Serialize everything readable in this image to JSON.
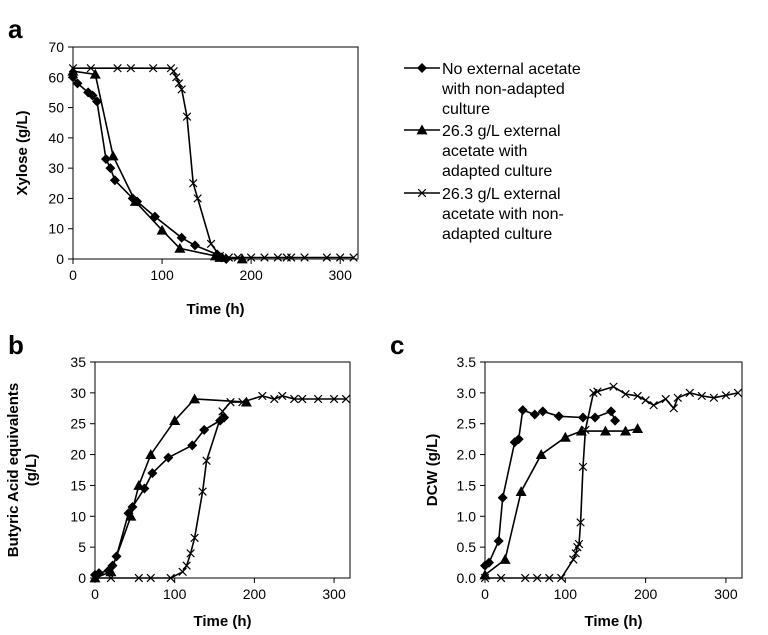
{
  "chart_data": [
    {
      "panel": "a",
      "type": "line",
      "xlabel": "Time (h)",
      "ylabel": "Xylose (g/L)",
      "xlim": [
        0,
        320
      ],
      "ylim": [
        0,
        70
      ],
      "xticks": [
        "0",
        "100",
        "200",
        "300"
      ],
      "yticks": [
        "0",
        "10",
        "20",
        "30",
        "40",
        "50",
        "60",
        "70"
      ],
      "grid": false,
      "legend_position": "right",
      "series": [
        {
          "name": "No external acetate with non-adapted culture",
          "legend_lines": [
            "No external acetate",
            "with non-adapted",
            "culture"
          ],
          "marker": "diamond",
          "x": [
            0,
            5,
            17,
            22,
            27,
            37,
            42,
            47,
            67,
            72,
            92,
            122,
            137,
            162,
            167,
            172
          ],
          "y": [
            60,
            58,
            55,
            54,
            52,
            33,
            30,
            26,
            20,
            19,
            14,
            7,
            4.5,
            1.5,
            0.5,
            0
          ]
        },
        {
          "name": "26.3 g/L external acetate with adapted culture",
          "legend_lines": [
            "26.3 g/L external",
            "acetate with",
            "adapted culture"
          ],
          "marker": "triangle",
          "x": [
            0,
            25,
            45,
            70,
            100,
            120,
            160,
            165,
            190
          ],
          "y": [
            62,
            61,
            34,
            19,
            9.5,
            3.5,
            1.0,
            0.5,
            0
          ]
        },
        {
          "name": "26.3 g/L external acetate with non-adapted culture",
          "legend_lines": [
            "26.3 g/L external",
            "acetate with non-",
            "adapted culture"
          ],
          "marker": "x",
          "x": [
            0,
            20,
            50,
            65,
            90,
            110,
            113,
            116,
            119,
            122,
            128,
            135,
            140,
            155,
            165,
            175,
            185,
            200,
            215,
            230,
            240,
            245,
            260,
            285,
            300,
            315
          ],
          "y": [
            63,
            63,
            63,
            63,
            63,
            63,
            62,
            60,
            58,
            56,
            47,
            25,
            20,
            5,
            1,
            0.5,
            0.5,
            0.5,
            0.5,
            0.5,
            0.5,
            0.5,
            0.5,
            0.5,
            0.5,
            0.5
          ]
        }
      ]
    },
    {
      "panel": "b",
      "type": "line",
      "xlabel": "Time (h)",
      "ylabel": "Butyric Acid equivalents (g/L)",
      "ylabel_lines": [
        "Butyric Acid equivalents",
        "(g/L)"
      ],
      "xlim": [
        0,
        320
      ],
      "ylim": [
        0,
        35
      ],
      "xticks": [
        "0",
        "100",
        "200",
        "300"
      ],
      "yticks": [
        "0",
        "5",
        "10",
        "15",
        "20",
        "25",
        "30",
        "35"
      ],
      "grid": false,
      "series": [
        {
          "marker": "diamond",
          "x": [
            0,
            5,
            17,
            22,
            27,
            42,
            47,
            62,
            72,
            92,
            122,
            137,
            157,
            162
          ],
          "y": [
            0.5,
            0.8,
            1.2,
            2,
            3.5,
            10.5,
            11.5,
            14.5,
            17,
            19.5,
            21.5,
            24,
            25.5,
            26
          ]
        },
        {
          "marker": "triangle",
          "x": [
            0,
            20,
            45,
            55,
            70,
            100,
            125,
            190
          ],
          "y": [
            0,
            1,
            10,
            15,
            20,
            25.5,
            29,
            28.5
          ]
        },
        {
          "marker": "x",
          "x": [
            0,
            20,
            55,
            70,
            95,
            110,
            115,
            120,
            125,
            135,
            140,
            160,
            170,
            185,
            210,
            225,
            235,
            250,
            260,
            280,
            300,
            315
          ],
          "y": [
            0,
            0,
            0,
            0,
            0,
            1,
            2,
            4,
            6.5,
            14,
            19,
            27,
            28.5,
            28.5,
            29.5,
            29,
            29.5,
            29,
            29,
            29,
            29,
            29
          ]
        }
      ]
    },
    {
      "panel": "c",
      "type": "line",
      "xlabel": "Time (h)",
      "ylabel": "DCW (g/L)",
      "xlim": [
        0,
        320
      ],
      "ylim": [
        0,
        3.5
      ],
      "xticks": [
        "0",
        "100",
        "200",
        "300"
      ],
      "yticks": [
        "0.0",
        "0.5",
        "1.0",
        "1.5",
        "2.0",
        "2.5",
        "3.0",
        "3.5"
      ],
      "grid": false,
      "series": [
        {
          "marker": "diamond",
          "x": [
            0,
            5,
            17,
            22,
            37,
            42,
            47,
            62,
            72,
            92,
            122,
            137,
            157,
            162
          ],
          "y": [
            0.2,
            0.25,
            0.6,
            1.3,
            2.2,
            2.25,
            2.72,
            2.65,
            2.7,
            2.62,
            2.6,
            2.6,
            2.7,
            2.55
          ]
        },
        {
          "marker": "triangle",
          "x": [
            0,
            25,
            45,
            70,
            100,
            120,
            150,
            175,
            190
          ],
          "y": [
            0.05,
            0.3,
            1.4,
            2.0,
            2.28,
            2.38,
            2.38,
            2.38,
            2.42
          ]
        },
        {
          "marker": "x",
          "x": [
            0,
            20,
            50,
            65,
            80,
            95,
            110,
            113,
            115,
            117,
            119,
            122,
            125,
            135,
            140,
            160,
            175,
            190,
            200,
            210,
            225,
            235,
            240,
            255,
            270,
            285,
            300,
            315
          ],
          "y": [
            0,
            0,
            0,
            0,
            0,
            0,
            0.3,
            0.4,
            0.5,
            0.55,
            0.9,
            1.8,
            2.4,
            3.0,
            3.02,
            3.1,
            2.98,
            2.95,
            2.88,
            2.8,
            2.9,
            2.75,
            2.92,
            3.0,
            2.95,
            2.92,
            2.96,
            3.0
          ]
        }
      ]
    }
  ]
}
